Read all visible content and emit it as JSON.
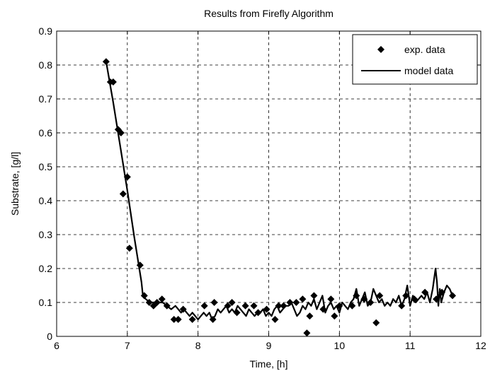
{
  "chart_data": {
    "type": "line",
    "title": "Results from Firefly Algorithm",
    "xlabel": "Time, [h]",
    "ylabel": "Substrate, [g/l]",
    "xlim": [
      6,
      12
    ],
    "ylim": [
      0,
      0.9
    ],
    "xticks": [
      6,
      7,
      8,
      9,
      10,
      11,
      12
    ],
    "yticks": [
      0,
      0.1,
      0.2,
      0.3,
      0.4,
      0.5,
      0.6,
      0.7,
      0.8,
      0.9
    ],
    "xtick_labels": [
      "6",
      "7",
      "8",
      "9",
      "10",
      "11",
      "12"
    ],
    "ytick_labels": [
      "0",
      "0.1",
      "0.2",
      "0.3",
      "0.4",
      "0.5",
      "0.6",
      "0.7",
      "0.8",
      "0.9"
    ],
    "grid": true,
    "grid_style": "dashed",
    "legend_position": "top-right",
    "series": [
      {
        "name": "exp. data",
        "kind": "scatter",
        "marker": "plus-diamond",
        "color": "#000000",
        "x": [
          6.7,
          6.76,
          6.8,
          6.87,
          6.91,
          6.94,
          7.0,
          7.03,
          7.18,
          7.24,
          7.31,
          7.37,
          7.42,
          7.49,
          7.56,
          7.66,
          7.72,
          7.79,
          7.92,
          8.09,
          8.21,
          8.23,
          8.42,
          8.48,
          8.55,
          8.67,
          8.79,
          8.85,
          8.97,
          9.09,
          9.14,
          9.21,
          9.3,
          9.39,
          9.48,
          9.54,
          9.58,
          9.64,
          9.77,
          9.88,
          9.93,
          10.0,
          10.18,
          10.24,
          10.35,
          10.44,
          10.52,
          10.57,
          10.88,
          10.94,
          11.06,
          11.21,
          11.37,
          11.45,
          11.6
        ],
        "y": [
          0.81,
          0.75,
          0.75,
          0.61,
          0.6,
          0.42,
          0.47,
          0.26,
          0.21,
          0.12,
          0.1,
          0.09,
          0.1,
          0.11,
          0.09,
          0.05,
          0.05,
          0.08,
          0.05,
          0.09,
          0.05,
          0.1,
          0.09,
          0.1,
          0.07,
          0.09,
          0.09,
          0.07,
          0.08,
          0.05,
          0.09,
          0.09,
          0.1,
          0.1,
          0.11,
          0.01,
          0.06,
          0.12,
          0.08,
          0.11,
          0.06,
          0.09,
          0.09,
          0.12,
          0.11,
          0.1,
          0.04,
          0.12,
          0.09,
          0.12,
          0.11,
          0.13,
          0.11,
          0.13,
          0.12
        ]
      },
      {
        "name": "model data",
        "kind": "line",
        "color": "#000000",
        "x": [
          6.7,
          6.8,
          6.9,
          7.0,
          7.1,
          7.2,
          7.22,
          7.26,
          7.32,
          7.38,
          7.44,
          7.5,
          7.56,
          7.62,
          7.68,
          7.72,
          7.76,
          7.8,
          7.84,
          7.88,
          7.92,
          7.96,
          8.0,
          8.04,
          8.08,
          8.12,
          8.16,
          8.2,
          8.24,
          8.28,
          8.32,
          8.36,
          8.4,
          8.44,
          8.48,
          8.52,
          8.56,
          8.6,
          8.64,
          8.68,
          8.72,
          8.76,
          8.8,
          8.84,
          8.88,
          8.92,
          8.96,
          9.0,
          9.04,
          9.08,
          9.12,
          9.16,
          9.2,
          9.24,
          9.28,
          9.32,
          9.36,
          9.4,
          9.44,
          9.48,
          9.52,
          9.56,
          9.6,
          9.64,
          9.68,
          9.72,
          9.76,
          9.8,
          9.84,
          9.88,
          9.92,
          9.96,
          10.0,
          10.04,
          10.08,
          10.12,
          10.16,
          10.2,
          10.24,
          10.28,
          10.32,
          10.36,
          10.4,
          10.44,
          10.48,
          10.52,
          10.56,
          10.6,
          10.64,
          10.68,
          10.72,
          10.76,
          10.8,
          10.84,
          10.88,
          10.92,
          10.96,
          11.0,
          11.04,
          11.08,
          11.12,
          11.16,
          11.2,
          11.24,
          11.28,
          11.32,
          11.36,
          11.38,
          11.4,
          11.42,
          11.44,
          11.48,
          11.52,
          11.56,
          11.6
        ],
        "y": [
          0.81,
          0.69,
          0.56,
          0.43,
          0.29,
          0.16,
          0.12,
          0.11,
          0.1,
          0.1,
          0.1,
          0.1,
          0.09,
          0.08,
          0.09,
          0.08,
          0.07,
          0.08,
          0.07,
          0.06,
          0.07,
          0.06,
          0.05,
          0.06,
          0.07,
          0.06,
          0.07,
          0.05,
          0.06,
          0.08,
          0.07,
          0.08,
          0.09,
          0.07,
          0.08,
          0.07,
          0.09,
          0.08,
          0.07,
          0.06,
          0.08,
          0.07,
          0.06,
          0.07,
          0.07,
          0.08,
          0.06,
          0.07,
          0.06,
          0.08,
          0.09,
          0.07,
          0.08,
          0.09,
          0.09,
          0.1,
          0.08,
          0.06,
          0.07,
          0.09,
          0.08,
          0.1,
          0.09,
          0.11,
          0.08,
          0.1,
          0.12,
          0.07,
          0.09,
          0.1,
          0.08,
          0.09,
          0.07,
          0.1,
          0.09,
          0.08,
          0.1,
          0.11,
          0.14,
          0.09,
          0.11,
          0.13,
          0.09,
          0.1,
          0.14,
          0.12,
          0.1,
          0.11,
          0.09,
          0.1,
          0.09,
          0.11,
          0.1,
          0.12,
          0.09,
          0.11,
          0.15,
          0.09,
          0.12,
          0.1,
          0.11,
          0.12,
          0.11,
          0.13,
          0.1,
          0.14,
          0.2,
          0.16,
          0.09,
          0.14,
          0.1,
          0.13,
          0.15,
          0.14,
          0.12
        ]
      }
    ]
  }
}
